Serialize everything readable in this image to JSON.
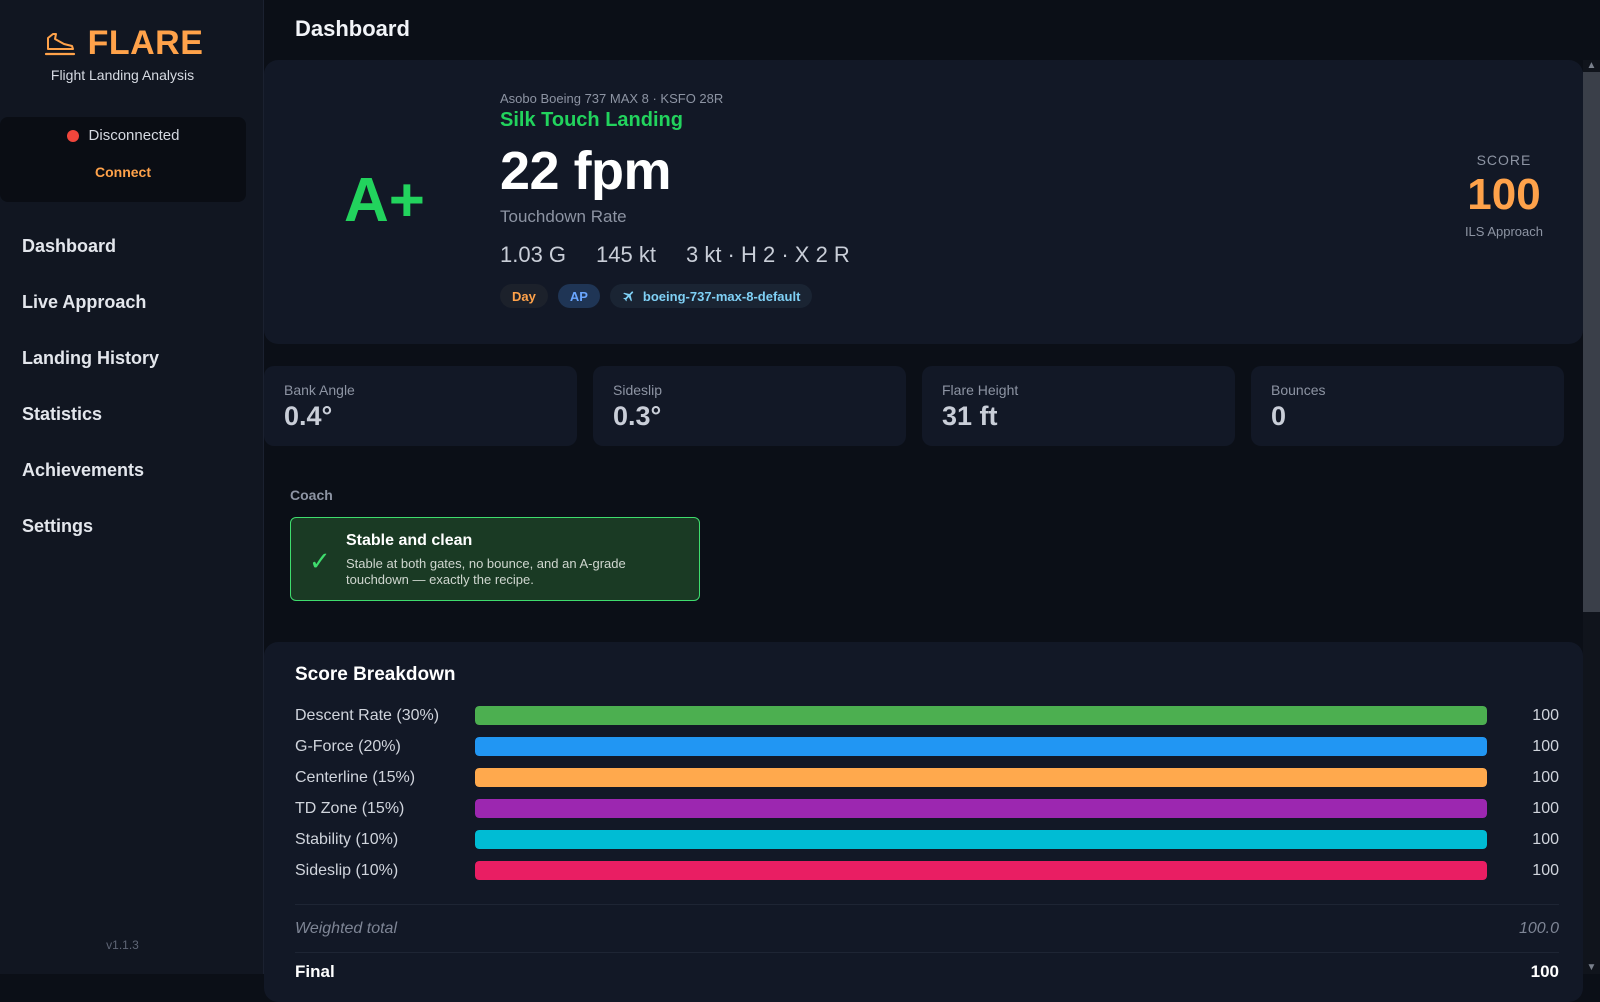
{
  "brand": {
    "name": "FLARE",
    "subtitle": "Flight Landing Analysis"
  },
  "connection": {
    "status": "Disconnected",
    "status_color": "#f0463c",
    "button": "Connect"
  },
  "nav": [
    "Dashboard",
    "Live Approach",
    "Landing History",
    "Statistics",
    "Achievements",
    "Settings"
  ],
  "version": "v1.1.3",
  "page_title": "Dashboard",
  "hero": {
    "grade": "A+",
    "meta": "Asobo Boeing 737 MAX 8 · KSFO 28R",
    "label": "Silk Touch Landing",
    "rate": "22 fpm",
    "rate_label": "Touchdown Rate",
    "g_force": "1.03 G",
    "speed": "145 kt",
    "wind": "3 kt · H 2 · X 2 R",
    "chips": {
      "day": "Day",
      "ap": "AP",
      "aircraft": "boeing-737-max-8-default"
    },
    "score_label": "SCORE",
    "score_value": "100",
    "score_sub": "ILS Approach"
  },
  "stats": [
    {
      "label": "Bank Angle",
      "value": "0.4°"
    },
    {
      "label": "Sideslip",
      "value": "0.3°"
    },
    {
      "label": "Flare Height",
      "value": "31 ft"
    },
    {
      "label": "Bounces",
      "value": "0"
    }
  ],
  "coach": {
    "title": "Coach",
    "icon": "check-icon",
    "head": "Stable and clean",
    "body": "Stable at both gates, no bounce, and an A-grade touchdown — exactly the recipe."
  },
  "breakdown": {
    "title": "Score Breakdown",
    "rows": [
      {
        "label": "Descent Rate (30%)",
        "value": "100",
        "fraction": 1.0,
        "color": "#4caf50"
      },
      {
        "label": "G-Force (20%)",
        "value": "100",
        "fraction": 1.0,
        "color": "#2196f3"
      },
      {
        "label": "Centerline (15%)",
        "value": "100",
        "fraction": 1.0,
        "color": "#ffa94d"
      },
      {
        "label": "TD Zone (15%)",
        "value": "100",
        "fraction": 1.0,
        "color": "#9c27b0"
      },
      {
        "label": "Stability (10%)",
        "value": "100",
        "fraction": 1.0,
        "color": "#00bcd4"
      },
      {
        "label": "Sideslip (10%)",
        "value": "100",
        "fraction": 1.0,
        "color": "#e91e63"
      }
    ],
    "weighted_label": "Weighted total",
    "weighted_value": "100.0",
    "final_label": "Final",
    "final_value": "100"
  }
}
